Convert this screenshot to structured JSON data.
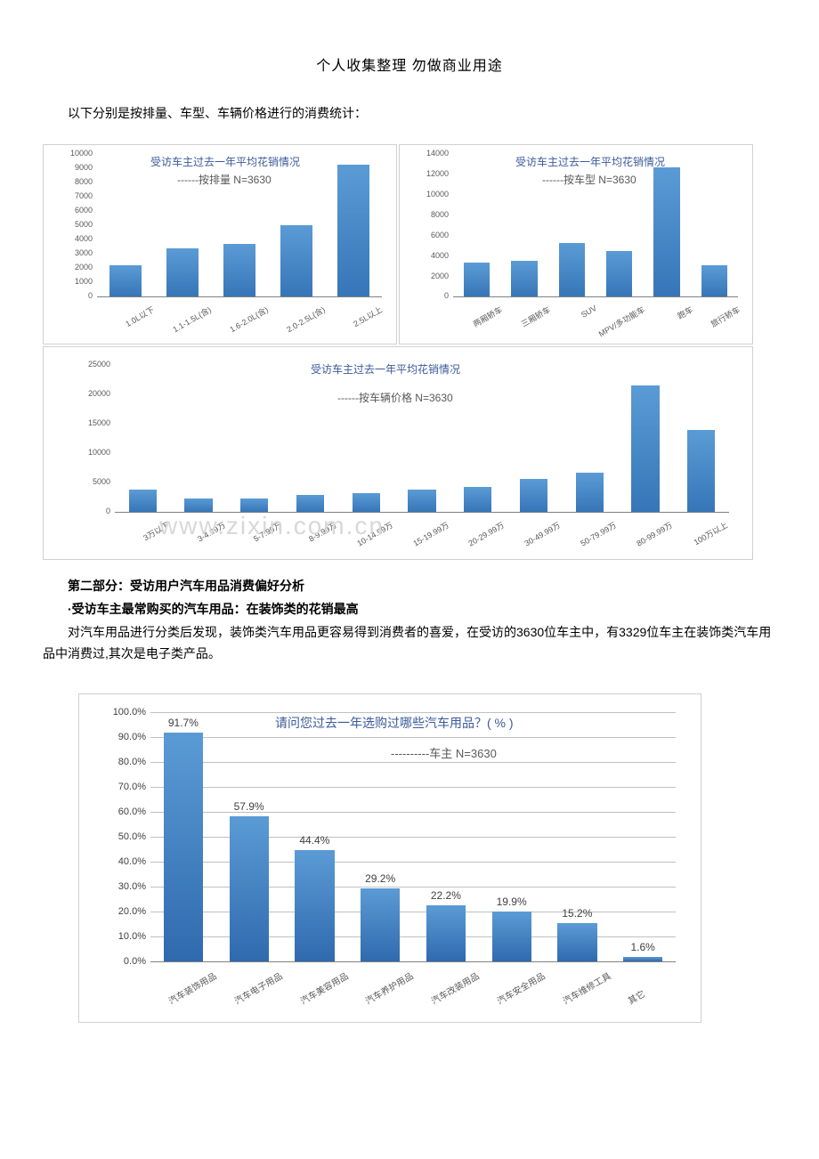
{
  "header": "个人收集整理 勿做商业用途",
  "intro": "以下分别是按排量、车型、车辆价格进行的消费统计：",
  "chart1": {
    "title": "受访车主过去一年平均花销情况",
    "subtitle": "------按排量 N=3630",
    "ylim": [
      0,
      10000
    ],
    "ytick_step": 1000,
    "bar_color": "#3676b8",
    "categories": [
      "1.0L以下",
      "1.1-1.5L(含)",
      "1.6-2.0L(含)",
      "2.0-2.5L(含)",
      "2.5L以上"
    ],
    "values": [
      2200,
      3400,
      3700,
      5000,
      9300
    ]
  },
  "chart2": {
    "title": "受访车主过去一年平均花销情况",
    "subtitle": "------按车型 N=3630",
    "ylim": [
      0,
      14000
    ],
    "ytick_step": 2000,
    "bar_color": "#3676b8",
    "categories": [
      "两厢轿车",
      "三厢轿车",
      "SUV",
      "MPV/多功能车",
      "跑车",
      "旅行轿车"
    ],
    "values": [
      3400,
      3500,
      5300,
      4500,
      12700,
      3100
    ]
  },
  "chart3": {
    "title": "受访车主过去一年平均花销情况",
    "subtitle": "------按车辆价格 N=3630",
    "ylim": [
      0,
      25000
    ],
    "ytick_step": 5000,
    "bar_color": "#3676b8",
    "categories": [
      "3万以下",
      "3-4.99万",
      "5-7.99万",
      "8-9.99万",
      "10-14.99万",
      "15-19.99万",
      "20-29.99万",
      "30-49.99万",
      "50-79.99万",
      "80-99.99万",
      "100万以上"
    ],
    "values": [
      3800,
      2400,
      2400,
      2900,
      3200,
      3800,
      4300,
      5700,
      6800,
      21500,
      14000
    ]
  },
  "section2_heading": "第二部分：受访用户汽车用品消费偏好分析",
  "bullet": "·受访车主最常购买的汽车用品：在装饰类的花销最高",
  "para": "对汽车用品进行分类后发现，装饰类汽车用品更容易得到消费者的喜爱，在受访的3630位车主中，有3329位车主在装饰类汽车用品中消费过,其次是电子类产品。",
  "chart4": {
    "title": "请问您过去一年选购过哪些汽车用品？( % )",
    "subtitle": "----------车主 N=3630",
    "ylim": [
      0,
      100
    ],
    "ytick_step": 10,
    "bar_color": "#3676b8",
    "categories": [
      "汽车装饰用品",
      "汽车电子用品",
      "汽车美容用品",
      "汽车养护用品",
      "汽车改装用品",
      "汽车安全用品",
      "汽车维修工具",
      "其它"
    ],
    "values": [
      91.7,
      57.9,
      44.4,
      29.2,
      22.2,
      19.9,
      15.2,
      1.6
    ]
  },
  "watermark": "www.zixin.com.cn",
  "colors": {
    "title": "#3a5a9a",
    "axis": "#808080",
    "grid": "#d0d0d0",
    "bar_top": "#5b9bd5",
    "bar_bottom": "#3676b8"
  }
}
